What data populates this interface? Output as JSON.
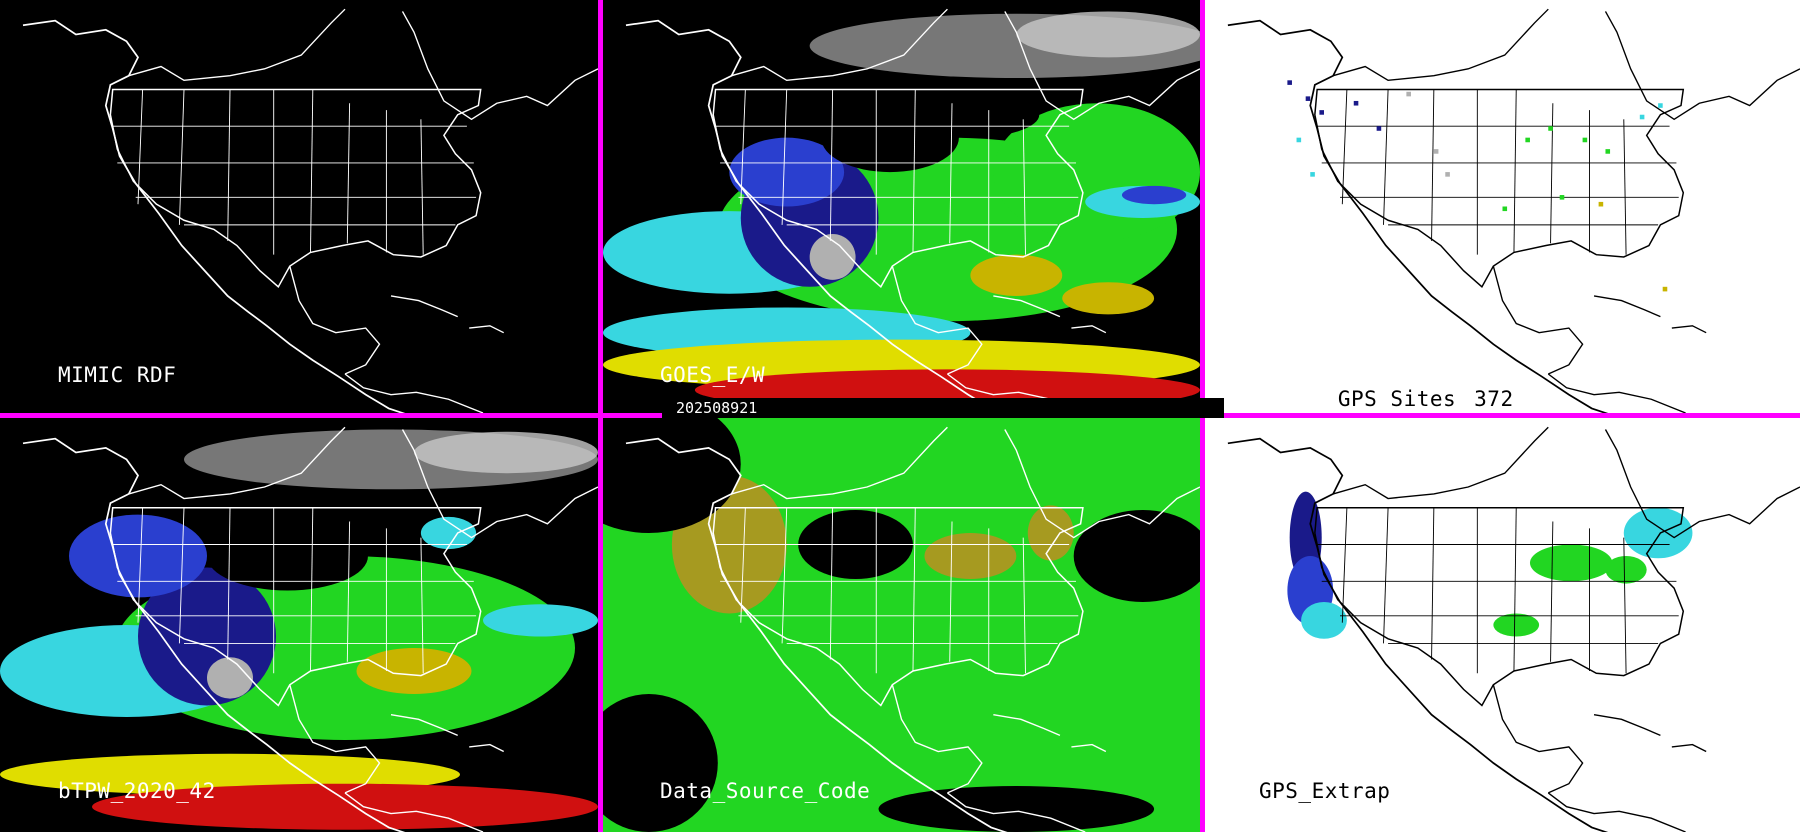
{
  "timestamp": "202508921",
  "panels": [
    {
      "id": "mimic",
      "label": "MIMIC RDF",
      "theme": "dark"
    },
    {
      "id": "goes",
      "label": "GOES_E/W",
      "theme": "dark"
    },
    {
      "id": "gps-sites",
      "label": "GPS Sites",
      "count": "372",
      "theme": "light"
    },
    {
      "id": "btpw",
      "label": "bTPW_2020_42",
      "theme": "dark"
    },
    {
      "id": "data-source",
      "label": "Data_Source_Code",
      "theme": "dark"
    },
    {
      "id": "gps-extrap",
      "label": "GPS_Extrap",
      "theme": "light"
    }
  ],
  "colors": {
    "divider": "#ff00ff",
    "dark_background": "#000000",
    "light_background": "#ffffff",
    "very_dry": "#1a1a8a",
    "dry": "#2a3fcf",
    "moderate": "#38d6e0",
    "moist": "#22d622",
    "wet": "#c8b400",
    "very_wet": "#e0dd00",
    "extreme": "#d01010",
    "missing_grey": "#b0b0b0",
    "source_olive": "#a69a20"
  }
}
